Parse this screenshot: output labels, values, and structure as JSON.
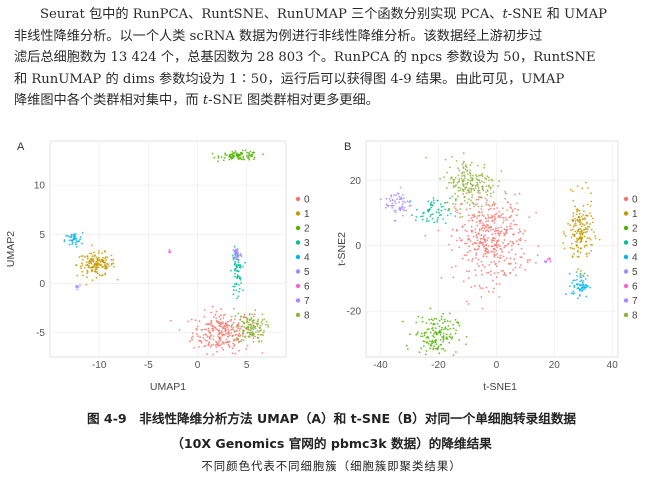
{
  "paragraph": {
    "l1a": "Seurat 包中的 RunPCA、RuntSNE、RunUMAP 三个函数分别实现 PCA、",
    "l1b": "t",
    "l1c": "-SNE 和 UMAP",
    "l2": "非线性降维分析。以一个人类 scRNA 数据为例进行非线性降维分析。该数据经上游初步过",
    "l3": "滤后总细胞数为 13 424 个，总基因数为 28 803 个。RunPCA 的 npcs 参数设为 50，RuntSNE",
    "l4": "和 RunUMAP 的 dims 参数均设为 1∶50，运行后可以获得图 4-9 结果。由此可见，UMAP",
    "l5a": "降维图中各个类群相对集中，而 ",
    "l5b": "t",
    "l5c": "-SNE 图类群相对更多更细。"
  },
  "colors": {
    "c0": "#F8766D",
    "c1": "#C49A00",
    "c2": "#53B400",
    "c3": "#00C094",
    "c4": "#00B6EB",
    "c5": "#A58AFF",
    "c6": "#FB61D7",
    "c7": "#A58AFF",
    "c8": "#8BB437"
  },
  "chart_data": [
    {
      "type": "scatter",
      "panel_label": "A",
      "xlabel": "UMAP1",
      "ylabel": "UMAP2",
      "xlim": [
        -15,
        9
      ],
      "ylim": [
        -7.5,
        14.5
      ],
      "xticks": [
        "-10",
        "-5",
        "0",
        "5"
      ],
      "yticks": [
        "10",
        "5",
        "0",
        "-5"
      ],
      "xtick_values": [
        -10,
        -5,
        0,
        5
      ],
      "ytick_values": [
        10,
        5,
        0,
        -5
      ],
      "legend": [
        "0",
        "1",
        "2",
        "3",
        "4",
        "5",
        "6",
        "7",
        "8"
      ],
      "clusters": [
        {
          "name": "0",
          "cx": 2.5,
          "cy": -5.0,
          "sx": 2.0,
          "sy": 1.4,
          "n": 260,
          "color_key": "c0"
        },
        {
          "name": "1",
          "cx": -10.3,
          "cy": 1.9,
          "sx": 1.3,
          "sy": 0.8,
          "n": 150,
          "color_key": "c1"
        },
        {
          "name": "2",
          "cx": 4.3,
          "cy": 13.0,
          "sx": 1.3,
          "sy": 0.3,
          "n": 90,
          "color_key": "c2"
        },
        {
          "name": "3",
          "cx": 4.0,
          "cy": 1.2,
          "sx": 0.35,
          "sy": 1.5,
          "n": 70,
          "color_key": "c3"
        },
        {
          "name": "4",
          "cx": -12.6,
          "cy": 4.4,
          "sx": 0.6,
          "sy": 0.5,
          "n": 40,
          "color_key": "c4"
        },
        {
          "name": "5",
          "cx": 4.0,
          "cy": 3.0,
          "sx": 0.3,
          "sy": 0.5,
          "n": 40,
          "color_key": "c5"
        },
        {
          "name": "6",
          "cx": -2.8,
          "cy": 3.3,
          "sx": 0.1,
          "sy": 0.15,
          "n": 6,
          "color_key": "c6"
        },
        {
          "name": "7",
          "cx": -12.2,
          "cy": -0.3,
          "sx": 0.3,
          "sy": 0.15,
          "n": 8,
          "color_key": "c7"
        },
        {
          "name": "8",
          "cx": 5.4,
          "cy": -4.5,
          "sx": 1.0,
          "sy": 1.0,
          "n": 130,
          "color_key": "c8"
        }
      ]
    },
    {
      "type": "scatter",
      "panel_label": "B",
      "xlabel": "t-SNE1",
      "ylabel": "t-SNE2",
      "xlim": [
        -45,
        42
      ],
      "ylim": [
        -34,
        32
      ],
      "xticks": [
        "-40",
        "-20",
        "0",
        "20",
        "40"
      ],
      "yticks": [
        "20",
        "0",
        "-20"
      ],
      "xtick_values": [
        -40,
        -20,
        0,
        20,
        40
      ],
      "ytick_values": [
        20,
        0,
        -20
      ],
      "legend": [
        "0",
        "1",
        "2",
        "3",
        "4",
        "5",
        "6",
        "7",
        "8"
      ],
      "clusters": [
        {
          "name": "0",
          "cx": -2,
          "cy": 2,
          "sx": 8,
          "sy": 9,
          "n": 420,
          "color_key": "c0"
        },
        {
          "name": "1",
          "cx": 29,
          "cy": 4,
          "sx": 3,
          "sy": 7,
          "n": 170,
          "color_key": "c1"
        },
        {
          "name": "2",
          "cx": -21,
          "cy": -27,
          "sx": 5,
          "sy": 4,
          "n": 150,
          "color_key": "c2"
        },
        {
          "name": "3",
          "cx": -22,
          "cy": 10,
          "sx": 4,
          "sy": 3,
          "n": 60,
          "color_key": "c3"
        },
        {
          "name": "4",
          "cx": 29,
          "cy": -12,
          "sx": 2,
          "sy": 2.5,
          "n": 60,
          "color_key": "c4"
        },
        {
          "name": "5",
          "cx": -34,
          "cy": 13,
          "sx": 3,
          "sy": 3,
          "n": 60,
          "color_key": "c5"
        },
        {
          "name": "6",
          "cx": 18,
          "cy": -4,
          "sx": 0.8,
          "sy": 0.6,
          "n": 6,
          "color_key": "c6"
        },
        {
          "name": "7",
          "cx": 17,
          "cy": -5,
          "sx": 0.5,
          "sy": 0.4,
          "n": 4,
          "color_key": "c7"
        },
        {
          "name": "8",
          "cx": -9,
          "cy": 19,
          "sx": 6,
          "sy": 5,
          "n": 200,
          "color_key": "c8"
        }
      ]
    }
  ],
  "caption": {
    "line1": "图 4-9　非线性降维分析方法 UMAP（A）和 t-SNE（B）对同一个单细胞转录组数据",
    "line2": "（10X Genomics 官网的 pbmc3k 数据）的降维结果",
    "line3": "不同颜色代表不同细胞簇（细胞簇即聚类结果）"
  }
}
